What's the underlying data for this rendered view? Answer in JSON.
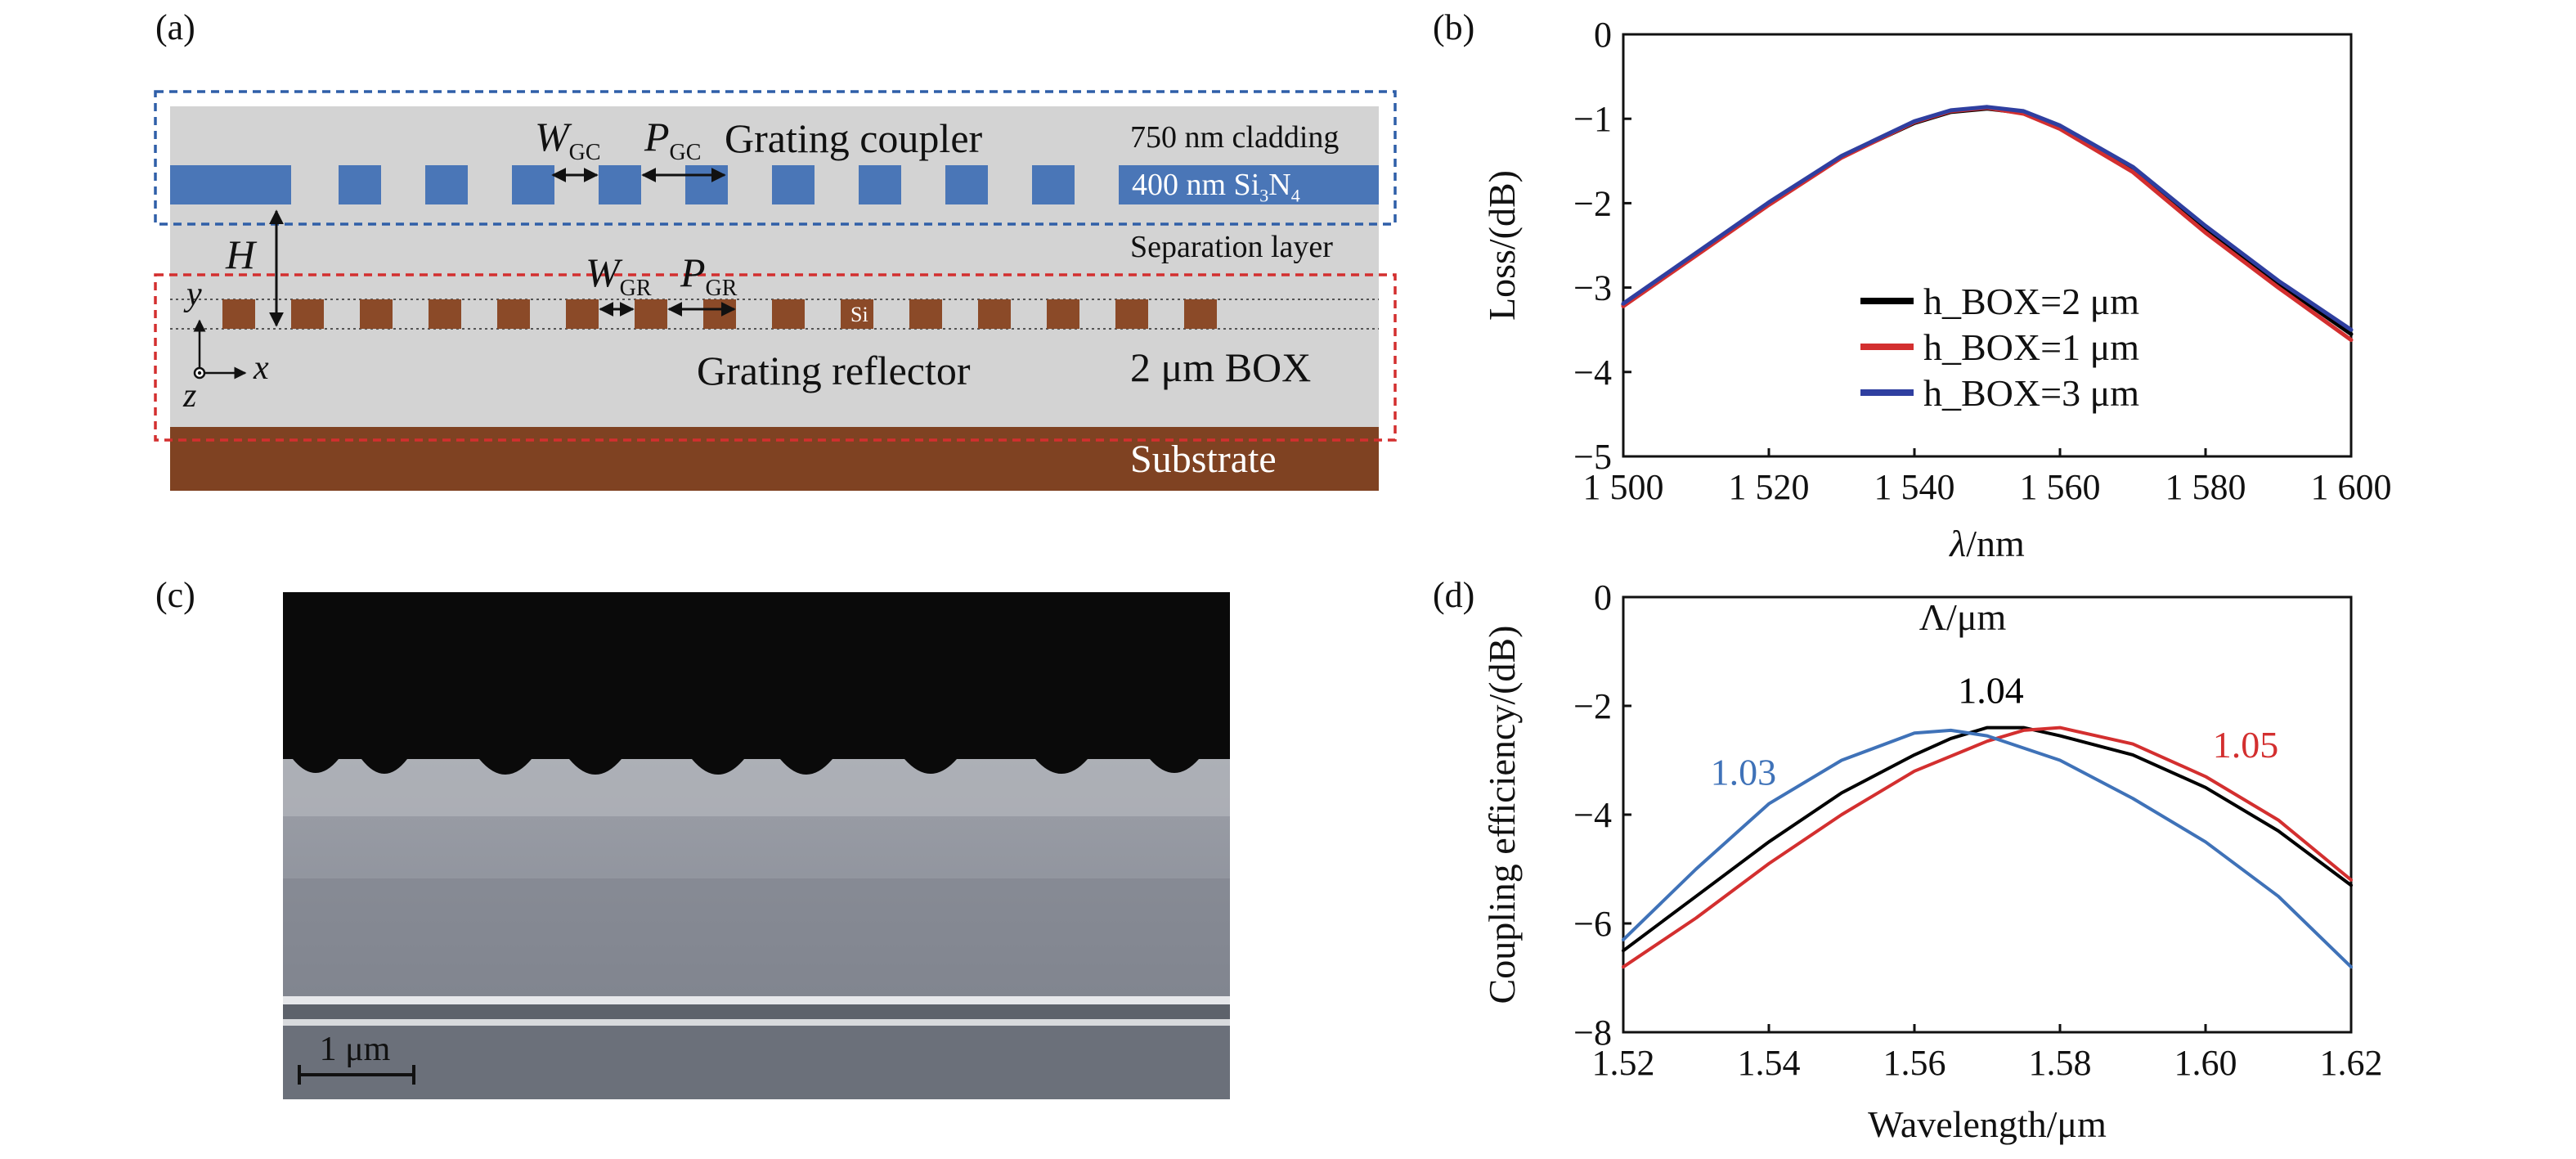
{
  "panel_labels": {
    "a": "(a)",
    "b": "(b)",
    "c": "(c)",
    "d": "(d)"
  },
  "panel_a": {
    "grating_coupler_title": "Grating coupler",
    "cladding_label": "750 nm cladding",
    "sin_label_main": "400 nm Si",
    "sin_sub_3": "3",
    "sin_mid": "N",
    "sin_sub_4": "4",
    "w_gc_main": "W",
    "w_gc_sub": "GC",
    "p_gc_main": "P",
    "p_gc_sub": "GC",
    "h_label": "H",
    "separation_label": "Separation layer",
    "w_gr_main": "W",
    "w_gr_sub": "GR",
    "p_gr_main": "P",
    "p_gr_sub": "GR",
    "si_label": "Si",
    "axis_y": "y",
    "axis_x": "x",
    "axis_z": "z",
    "reflector_label": "Grating reflector",
    "box_label": "2 μm BOX",
    "substrate_label": "Substrate",
    "colors": {
      "cladding": "#d3d3d3",
      "sin": "#4a76b7",
      "si": "#8b4a28",
      "substrate": "#7f4222",
      "blue_dash": "#2f5fa8",
      "red_dash": "#d32f2f"
    }
  },
  "panel_c": {
    "scale_label": "1 μm"
  },
  "chart_data": [
    {
      "id": "b",
      "type": "line",
      "title": "",
      "xlabel_sym": "λ",
      "xlabel_unit": "/nm",
      "ylabel": "Loss/(dB)",
      "xlim": [
        1500,
        1600
      ],
      "ylim": [
        -5,
        0
      ],
      "xticks": [
        1500,
        1520,
        1540,
        1560,
        1580,
        1600
      ],
      "xtick_labels": [
        "1 500",
        "1 520",
        "1 540",
        "1 560",
        "1 580",
        "1 600"
      ],
      "yticks": [
        0,
        -1,
        -2,
        -3,
        -4,
        -5
      ],
      "ytick_labels": [
        "0",
        "−1",
        "−2",
        "−3",
        "−4",
        "−5"
      ],
      "legend_position": "bottom-center",
      "series": [
        {
          "name": "h_BOX=2 μm",
          "color": "#000000",
          "x": [
            1500,
            1510,
            1520,
            1530,
            1540,
            1545,
            1550,
            1555,
            1560,
            1570,
            1580,
            1590,
            1600
          ],
          "y": [
            -3.2,
            -2.6,
            -2.0,
            -1.45,
            -1.05,
            -0.92,
            -0.88,
            -0.93,
            -1.1,
            -1.6,
            -2.3,
            -2.95,
            -3.55
          ]
        },
        {
          "name": "h_BOX=1 μm",
          "color": "#d32f2f",
          "x": [
            1500,
            1510,
            1520,
            1530,
            1540,
            1545,
            1550,
            1555,
            1560,
            1570,
            1580,
            1590,
            1600
          ],
          "y": [
            -3.22,
            -2.62,
            -2.02,
            -1.46,
            -1.04,
            -0.91,
            -0.87,
            -0.94,
            -1.12,
            -1.63,
            -2.35,
            -3.0,
            -3.62
          ]
        },
        {
          "name": "h_BOX=3 μm",
          "color": "#2f3fa0",
          "x": [
            1500,
            1510,
            1520,
            1530,
            1540,
            1545,
            1550,
            1555,
            1560,
            1570,
            1580,
            1590,
            1600
          ],
          "y": [
            -3.19,
            -2.59,
            -1.99,
            -1.44,
            -1.03,
            -0.9,
            -0.86,
            -0.91,
            -1.08,
            -1.57,
            -2.27,
            -2.92,
            -3.5
          ]
        }
      ]
    },
    {
      "id": "d",
      "type": "line",
      "title": "Λ/μm",
      "xlabel": "Wavelength/μm",
      "ylabel": "Coupling efficiency/(dB)",
      "xlim": [
        1.52,
        1.62
      ],
      "ylim": [
        -8,
        0
      ],
      "xticks": [
        1.52,
        1.54,
        1.56,
        1.58,
        1.6,
        1.62
      ],
      "xtick_labels": [
        "1.52",
        "1.54",
        "1.56",
        "1.58",
        "1.60",
        "1.62"
      ],
      "yticks": [
        0,
        -2,
        -4,
        -6,
        -8
      ],
      "ytick_labels": [
        "0",
        "−2",
        "−4",
        "−6",
        "−8"
      ],
      "series": [
        {
          "name": "1.04",
          "color": "#000000",
          "x": [
            1.52,
            1.53,
            1.54,
            1.55,
            1.56,
            1.565,
            1.57,
            1.575,
            1.58,
            1.59,
            1.6,
            1.61,
            1.62
          ],
          "y": [
            -6.5,
            -5.5,
            -4.5,
            -3.6,
            -2.9,
            -2.6,
            -2.4,
            -2.4,
            -2.55,
            -2.9,
            -3.5,
            -4.3,
            -5.3
          ]
        },
        {
          "name": "1.05",
          "color": "#d32f2f",
          "x": [
            1.52,
            1.53,
            1.54,
            1.55,
            1.56,
            1.57,
            1.575,
            1.58,
            1.59,
            1.6,
            1.61,
            1.62
          ],
          "y": [
            -6.8,
            -5.9,
            -4.9,
            -4.0,
            -3.2,
            -2.65,
            -2.45,
            -2.4,
            -2.7,
            -3.3,
            -4.1,
            -5.2
          ]
        },
        {
          "name": "1.03",
          "color": "#3f72b8",
          "x": [
            1.52,
            1.53,
            1.54,
            1.55,
            1.56,
            1.565,
            1.57,
            1.58,
            1.59,
            1.6,
            1.61,
            1.62
          ],
          "y": [
            -6.3,
            -5.0,
            -3.8,
            -3.0,
            -2.5,
            -2.45,
            -2.55,
            -3.0,
            -3.7,
            -4.5,
            -5.5,
            -6.8
          ]
        }
      ]
    }
  ]
}
